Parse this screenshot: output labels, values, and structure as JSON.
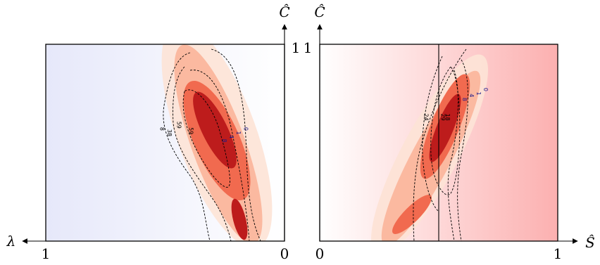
{
  "chart_data": [
    {
      "type": "heatmap",
      "panel": "left",
      "xlabel": "λ",
      "ylabel": "Ĉ",
      "x_ticks": [
        "1",
        "0"
      ],
      "y_ticks": [
        "1"
      ],
      "xlim": [
        1,
        0
      ],
      "ylim": [
        0,
        1
      ],
      "background_gradient": {
        "from": "#e6e8fa",
        "to": "#ffffff"
      },
      "density_levels": [
        {
          "level": 1,
          "color": "#fde3d6"
        },
        {
          "level": 2,
          "color": "#fbb9a0"
        },
        {
          "level": 3,
          "color": "#f16a4f"
        },
        {
          "level": 4,
          "color": "#bd1c1c"
        }
      ],
      "contour_labels": [
        {
          "text": "8",
          "x": 0.52,
          "y": 0.57,
          "color": "#000000"
        },
        {
          "text": "38",
          "x": 0.49,
          "y": 0.55,
          "color": "#000000"
        },
        {
          "text": "59",
          "x": 0.45,
          "y": 0.59,
          "color": "#000000"
        },
        {
          "text": "59",
          "x": 0.4,
          "y": 0.56,
          "color": "#000000"
        },
        {
          "text": "8",
          "x": 0.26,
          "y": 0.51,
          "color": "#1a1a8c"
        },
        {
          "text": "4",
          "x": 0.23,
          "y": 0.53,
          "color": "#1a1a8c"
        },
        {
          "text": "1",
          "x": 0.2,
          "y": 0.55,
          "color": "#1a1a8c"
        },
        {
          "text": "0",
          "x": 0.17,
          "y": 0.57,
          "color": "#1a1a8c"
        }
      ]
    },
    {
      "type": "heatmap",
      "panel": "right",
      "xlabel": "Ŝ",
      "ylabel": "Ĉ",
      "x_ticks": [
        "0",
        "1"
      ],
      "y_ticks": [
        "1"
      ],
      "xlim": [
        0,
        1
      ],
      "ylim": [
        0,
        1
      ],
      "background_gradient": {
        "from": "#ffffff",
        "to": "#fcb0b0"
      },
      "vertical_line_x": 0.5,
      "density_levels": [
        {
          "level": 1,
          "color": "#fde3d6"
        },
        {
          "level": 2,
          "color": "#fbb9a0"
        },
        {
          "level": 3,
          "color": "#f16a4f"
        },
        {
          "level": 4,
          "color": "#bd1c1c"
        }
      ],
      "contour_labels": [
        {
          "text": "24",
          "x": 0.44,
          "y": 0.63,
          "color": "#000000"
        },
        {
          "text": "29",
          "x": 0.51,
          "y": 0.63,
          "color": "#000000"
        },
        {
          "text": "18",
          "x": 0.53,
          "y": 0.63,
          "color": "#000000"
        },
        {
          "text": "8",
          "x": 0.6,
          "y": 0.72,
          "color": "#1a1a8c"
        },
        {
          "text": "4",
          "x": 0.63,
          "y": 0.74,
          "color": "#1a1a8c"
        },
        {
          "text": "1",
          "x": 0.66,
          "y": 0.75,
          "color": "#1a1a8c"
        },
        {
          "text": "0",
          "x": 0.69,
          "y": 0.77,
          "color": "#1a1a8c"
        }
      ]
    }
  ]
}
